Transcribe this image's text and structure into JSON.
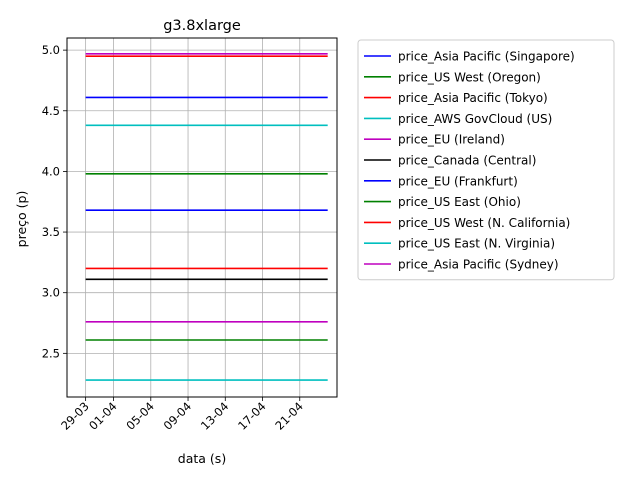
{
  "chart_data": {
    "type": "line",
    "title": "g3.8xlarge",
    "xlabel": "data (s)",
    "ylabel": "preço (p)",
    "x_start": "2018-03-29",
    "x_end": "2018-04-24",
    "xlim": [
      "2018-03-27",
      "2018-04-25"
    ],
    "xticks": [
      {
        "date": "2018-03-29",
        "label": "29-03"
      },
      {
        "date": "2018-04-01",
        "label": "01-04"
      },
      {
        "date": "2018-04-05",
        "label": "05-04"
      },
      {
        "date": "2018-04-09",
        "label": "09-04"
      },
      {
        "date": "2018-04-13",
        "label": "13-04"
      },
      {
        "date": "2018-04-17",
        "label": "17-04"
      },
      {
        "date": "2018-04-21",
        "label": "21-04"
      }
    ],
    "ylim": [
      2.14,
      5.1
    ],
    "yticks": [
      2.5,
      3.0,
      3.5,
      4.0,
      4.5,
      5.0
    ],
    "ytick_labels": [
      "2.5",
      "3.0",
      "3.5",
      "4.0",
      "4.5",
      "5.0"
    ],
    "grid": true,
    "legend_position": "outside-right",
    "series": [
      {
        "name": "price_Asia Pacific (Singapore)",
        "color": "#0000ff",
        "value": 4.61
      },
      {
        "name": "price_US West (Oregon)",
        "color": "#008000",
        "value": 3.98
      },
      {
        "name": "price_Asia Pacific (Tokyo)",
        "color": "#ff0000",
        "value": 4.95
      },
      {
        "name": "price_AWS GovCloud (US)",
        "color": "#00bfbf",
        "value": 4.38
      },
      {
        "name": "price_EU (Ireland)",
        "color": "#bf00bf",
        "value": 4.97
      },
      {
        "name": "price_Canada (Central)",
        "color": "#000000",
        "value": 3.11
      },
      {
        "name": "price_EU (Frankfurt)",
        "color": "#0000ff",
        "value": 3.68
      },
      {
        "name": "price_US East (Ohio)",
        "color": "#008000",
        "value": 2.61
      },
      {
        "name": "price_US West (N. California)",
        "color": "#ff0000",
        "value": 3.2
      },
      {
        "name": "price_US East (N. Virginia)",
        "color": "#00bfbf",
        "value": 2.28
      },
      {
        "name": "price_Asia Pacific (Sydney)",
        "color": "#bf00bf",
        "value": 2.76
      }
    ]
  }
}
